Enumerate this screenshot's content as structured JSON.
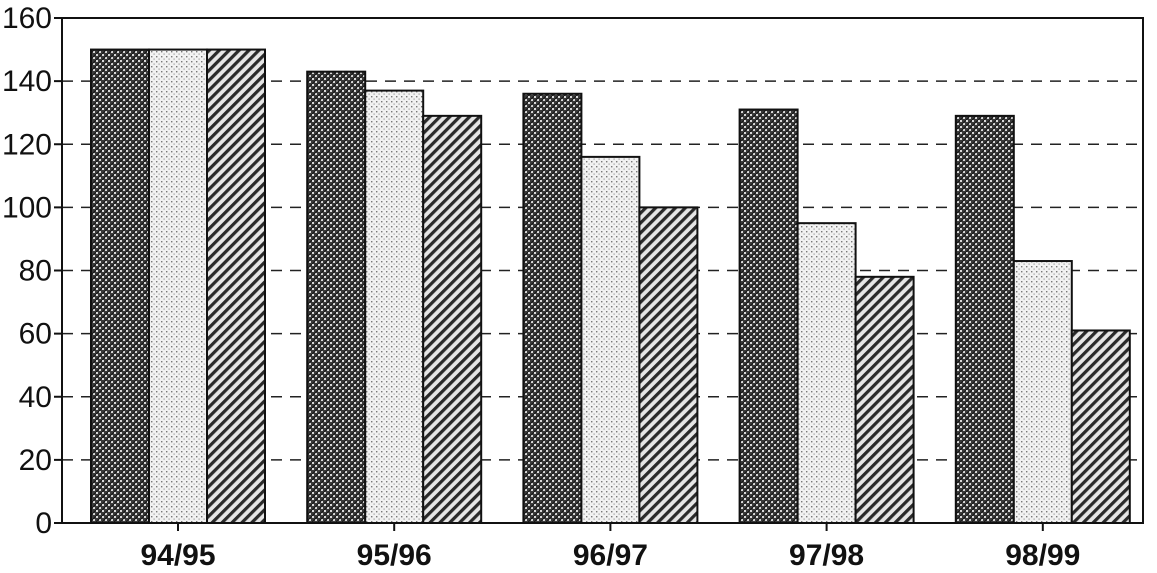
{
  "chart_data": {
    "type": "bar",
    "title": "",
    "xlabel": "",
    "ylabel": "",
    "categories": [
      "94/95",
      "95/96",
      "96/97",
      "97/98",
      "98/99"
    ],
    "series": [
      {
        "values": [
          150,
          143,
          136,
          131,
          129
        ],
        "pattern": "crosshatch-dark"
      },
      {
        "values": [
          150,
          137,
          116,
          95,
          83
        ],
        "pattern": "dotted-light"
      },
      {
        "values": [
          150,
          129,
          100,
          78,
          61
        ],
        "pattern": "diagonal-stripes"
      }
    ],
    "ylim": [
      0,
      160
    ],
    "yticks": [
      "0",
      "20",
      "40",
      "60",
      "80",
      "100",
      "120",
      "140",
      "160"
    ],
    "grid": true,
    "legend": "none"
  }
}
